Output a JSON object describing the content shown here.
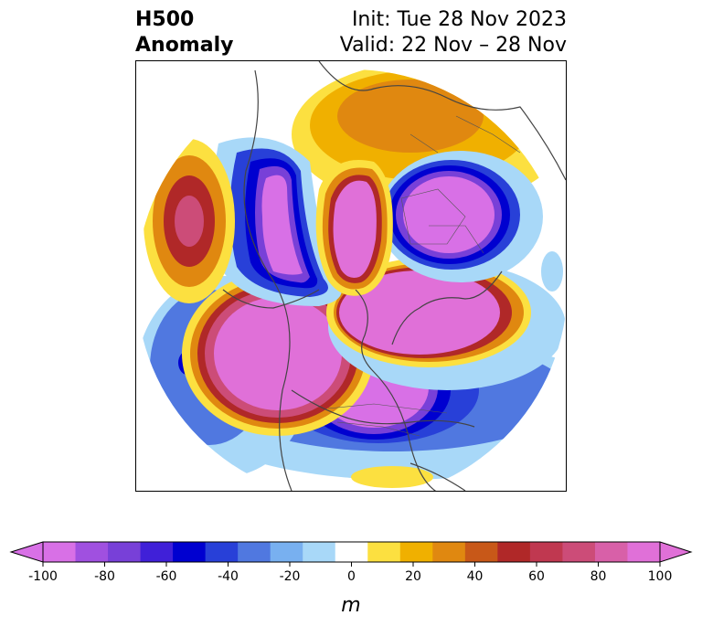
{
  "header": {
    "title_line1": "H500",
    "title_line2": "Anomaly",
    "init_text": "Init: Tue 28 Nov 2023",
    "valid_text": "Valid: 22 Nov – 28 Nov"
  },
  "map": {
    "projection": "north polar stereographic",
    "variable": "500 hPa geopotential height anomaly",
    "features": [
      {
        "type": "positive",
        "region": "North Pacific / Alaska",
        "max_anomaly": 100
      },
      {
        "type": "positive",
        "region": "Arctic / Northern Europe",
        "max_anomaly": 100
      },
      {
        "type": "positive",
        "region": "Siberia",
        "max_anomaly": 100
      },
      {
        "type": "positive",
        "region": "North Atlantic",
        "max_anomaly": 60
      },
      {
        "type": "negative",
        "region": "Western Russia / Scandinavia",
        "min_anomaly": -100
      },
      {
        "type": "negative",
        "region": "East Asia / Kamchatka",
        "min_anomaly": -100
      },
      {
        "type": "negative",
        "region": "Eastern North America",
        "min_anomaly": -100
      }
    ]
  },
  "colorbar": {
    "label": "m",
    "ticks": [
      "-100",
      "-80",
      "-60",
      "-40",
      "-20",
      "0",
      "20",
      "40",
      "60",
      "80",
      "100"
    ],
    "levels": [
      -100,
      -90,
      -80,
      -70,
      -60,
      -50,
      -40,
      -30,
      -20,
      -10,
      10,
      20,
      30,
      40,
      50,
      60,
      70,
      80,
      90,
      100
    ],
    "colors": [
      "#d870e6",
      "#a050e0",
      "#7840d8",
      "#4020d8",
      "#0000d0",
      "#2840d8",
      "#5078e0",
      "#78b0f0",
      "#a8d8f8",
      "#ffffff",
      "#fce040",
      "#f0b000",
      "#e08810",
      "#c85818",
      "#b02828",
      "#c03850",
      "#cc4c78",
      "#d860a8",
      "#e070d8"
    ],
    "under_color": "#d870e6",
    "over_color": "#e070d8"
  }
}
